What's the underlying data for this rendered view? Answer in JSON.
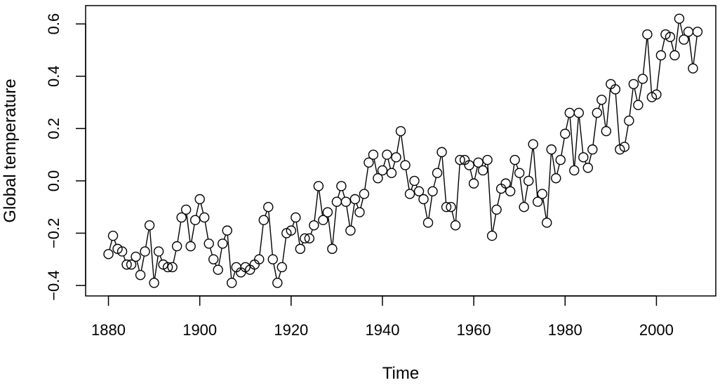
{
  "chart_data": {
    "type": "line",
    "title": "",
    "xlabel": "Time",
    "ylabel": "Global temperature",
    "xlim": [
      1875,
      2013
    ],
    "ylim": [
      -0.44,
      0.67
    ],
    "x_ticks": [
      1880,
      1900,
      1920,
      1940,
      1960,
      1980,
      2000
    ],
    "y_ticks": [
      -0.4,
      -0.2,
      0.0,
      0.2,
      0.4,
      0.6
    ],
    "x_tick_labels": [
      "1880",
      "1900",
      "1920",
      "1940",
      "1960",
      "1980",
      "2000"
    ],
    "y_tick_labels": [
      "−0.4",
      "−0.2",
      "0.0",
      "0.2",
      "0.4",
      "0.6"
    ],
    "grid": false,
    "legend": "none",
    "marker": "open-circle",
    "line_color": "#000000",
    "series": [
      {
        "x_start": 1880,
        "x_end": 2009,
        "values": [
          -0.28,
          -0.21,
          -0.26,
          -0.27,
          -0.32,
          -0.32,
          -0.29,
          -0.36,
          -0.27,
          -0.17,
          -0.39,
          -0.27,
          -0.32,
          -0.33,
          -0.33,
          -0.25,
          -0.14,
          -0.11,
          -0.25,
          -0.15,
          -0.07,
          -0.14,
          -0.24,
          -0.3,
          -0.34,
          -0.24,
          -0.19,
          -0.39,
          -0.33,
          -0.35,
          -0.33,
          -0.34,
          -0.32,
          -0.3,
          -0.15,
          -0.1,
          -0.3,
          -0.39,
          -0.33,
          -0.2,
          -0.19,
          -0.14,
          -0.26,
          -0.22,
          -0.22,
          -0.17,
          -0.02,
          -0.15,
          -0.12,
          -0.26,
          -0.08,
          -0.02,
          -0.08,
          -0.19,
          -0.07,
          -0.12,
          -0.05,
          0.07,
          0.1,
          0.01,
          0.04,
          0.1,
          0.03,
          0.09,
          0.19,
          0.06,
          -0.05,
          0.0,
          -0.04,
          -0.07,
          -0.16,
          -0.04,
          0.03,
          0.11,
          -0.1,
          -0.1,
          -0.17,
          0.08,
          0.08,
          0.06,
          -0.01,
          0.07,
          0.04,
          0.08,
          -0.21,
          -0.11,
          -0.03,
          -0.01,
          -0.04,
          0.08,
          0.03,
          -0.1,
          0.0,
          0.14,
          -0.08,
          -0.05,
          -0.16,
          0.12,
          0.01,
          0.08,
          0.18,
          0.26,
          0.04,
          0.26,
          0.09,
          0.05,
          0.12,
          0.26,
          0.31,
          0.19,
          0.37,
          0.35,
          0.12,
          0.13,
          0.23,
          0.37,
          0.29,
          0.39,
          0.56,
          0.32,
          0.33,
          0.48,
          0.56,
          0.55,
          0.48,
          0.62,
          0.54,
          0.57,
          0.43,
          0.57
        ]
      }
    ]
  }
}
